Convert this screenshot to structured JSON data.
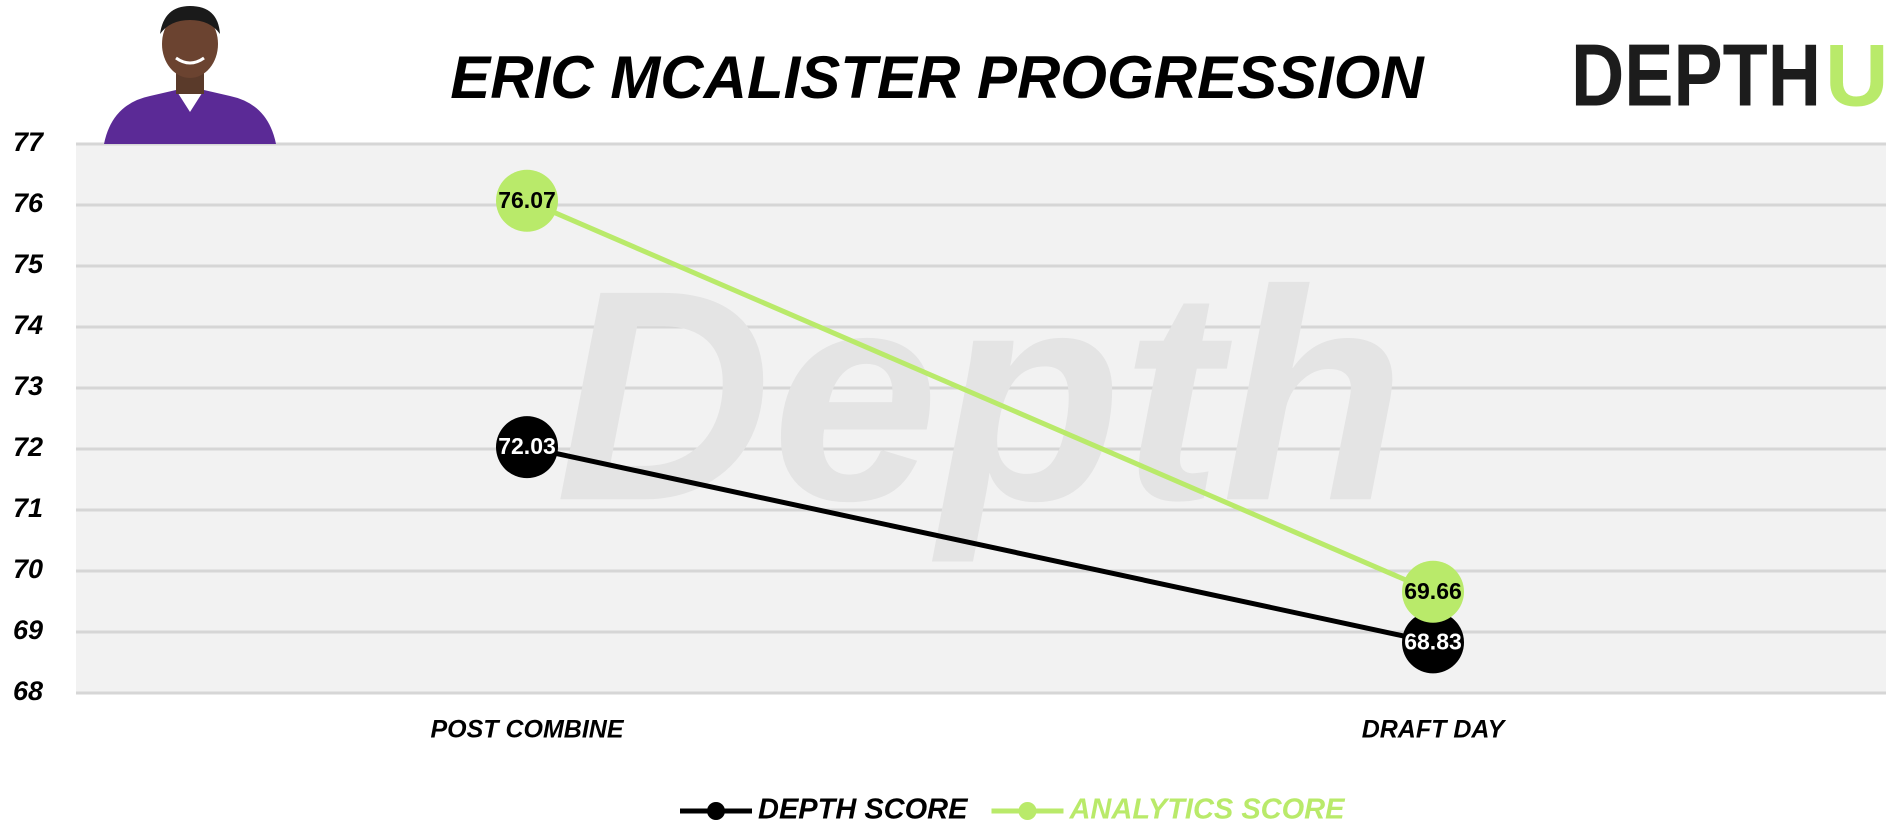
{
  "chart_data": {
    "type": "line",
    "title": "ERIC MCALISTER PROGRESSION",
    "watermark": "Depth",
    "logo": {
      "text": "DEPTH",
      "accent": "U"
    },
    "categories": [
      "POST COMBINE",
      "DRAFT DAY"
    ],
    "series": [
      {
        "name": "DEPTH SCORE",
        "color": "#000000",
        "values": [
          72.03,
          68.83
        ]
      },
      {
        "name": "ANALYTICS SCORE",
        "color": "#b9ea6a",
        "values": [
          76.07,
          69.66
        ]
      }
    ],
    "ylim": [
      68,
      77
    ],
    "yticks": [
      68,
      69,
      70,
      71,
      72,
      73,
      74,
      75,
      76,
      77
    ],
    "grid": true,
    "legend": "bottom"
  }
}
